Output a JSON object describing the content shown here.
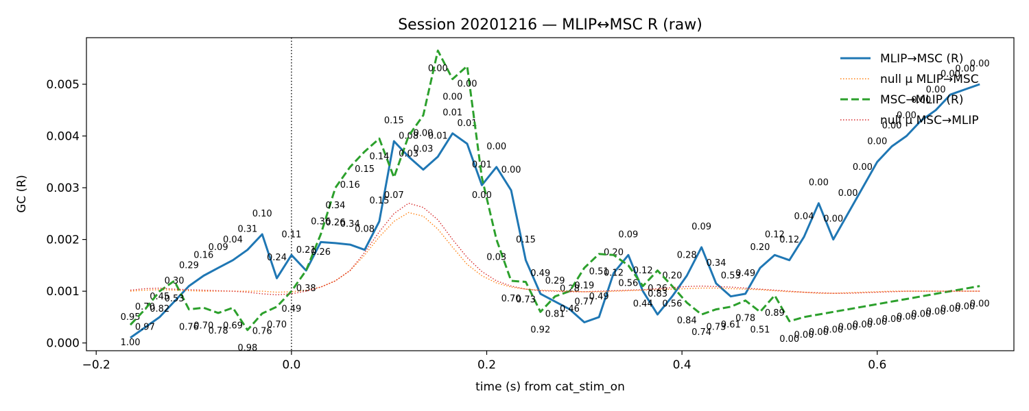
{
  "chart_data": {
    "type": "line",
    "title": "Session 20201216 — MLIP↔MSC R (raw)",
    "xlabel": "time (s) from cat_stim_on",
    "ylabel": "GC (R)",
    "xlim": [
      -0.21,
      0.74
    ],
    "ylim": [
      -0.00015,
      0.0059
    ],
    "x_ticks": [
      -0.2,
      0.0,
      0.2,
      0.4,
      0.6
    ],
    "x_tick_labels": [
      "−0.2",
      "0.0",
      "0.2",
      "0.4",
      "0.6"
    ],
    "y_ticks": [
      0.0,
      0.001,
      0.002,
      0.003,
      0.004,
      0.005
    ],
    "y_tick_labels": [
      "0.000",
      "0.001",
      "0.002",
      "0.003",
      "0.004",
      "0.005"
    ],
    "event_line_x": 0.0,
    "legend_position": "top-right",
    "x": [
      -0.165,
      -0.15,
      -0.135,
      -0.12,
      -0.105,
      -0.09,
      -0.075,
      -0.06,
      -0.045,
      -0.03,
      -0.015,
      0.0,
      0.015,
      0.03,
      0.045,
      0.06,
      0.075,
      0.09,
      0.105,
      0.12,
      0.135,
      0.15,
      0.165,
      0.18,
      0.195,
      0.21,
      0.225,
      0.24,
      0.255,
      0.27,
      0.285,
      0.3,
      0.315,
      0.33,
      0.345,
      0.36,
      0.375,
      0.39,
      0.405,
      0.42,
      0.435,
      0.45,
      0.465,
      0.48,
      0.495,
      0.51,
      0.525,
      0.54,
      0.555,
      0.57,
      0.585,
      0.6,
      0.615,
      0.63,
      0.645,
      0.66,
      0.675,
      0.69,
      0.705
    ],
    "series": [
      {
        "name": "MLIP→MSC (R)",
        "style": "solid",
        "color": "#1f77b4",
        "values": [
          0.0001,
          0.0003,
          0.0005,
          0.0008,
          0.0011,
          0.0013,
          0.00145,
          0.0016,
          0.0018,
          0.0021,
          0.00125,
          0.0017,
          0.0014,
          0.00195,
          0.00193,
          0.0019,
          0.0018,
          0.00235,
          0.0039,
          0.0036,
          0.00335,
          0.0036,
          0.00405,
          0.00385,
          0.00305,
          0.0034,
          0.00295,
          0.0016,
          0.00095,
          0.0008,
          0.00065,
          0.0004,
          0.0005,
          0.00135,
          0.0017,
          0.001,
          0.00055,
          0.0009,
          0.0013,
          0.00185,
          0.00115,
          0.0009,
          0.00095,
          0.00145,
          0.0017,
          0.0016,
          0.00205,
          0.0027,
          0.002,
          0.0025,
          0.003,
          0.0035,
          0.0038,
          0.004,
          0.0043,
          0.0045,
          0.0048,
          0.0049,
          0.005
        ],
        "annotations": [
          "0.95",
          "0.70",
          "0.45",
          "0.30",
          "0.29",
          "0.16",
          "0.09",
          "0.04",
          "0.31",
          "0.10",
          "0.24",
          "0.11",
          "0.21",
          "0.36",
          "0.26",
          "0.34",
          "0.08",
          "0.15",
          "0.15",
          "0.08",
          "0.03",
          "0.01",
          "0.01",
          "0.01",
          "0.01",
          "0.00",
          "0.00",
          "0.15",
          "0.49",
          "0.29",
          "0.28",
          "0.77",
          "0.49",
          "0.20",
          "0.09",
          "0.12",
          "0.83",
          "0.20",
          "0.28",
          "0.09",
          "0.34",
          "0.53",
          "0.49",
          "0.20",
          "0.12",
          "0.12",
          "0.04",
          "0.00",
          "0.00",
          "0.00",
          "0.00",
          "0.00",
          "0.00",
          "0.00",
          "0.00",
          "0.00",
          "0.00",
          "0.00",
          "0.00"
        ]
      },
      {
        "name": "null μ MLIP→MSC",
        "style": "dotted",
        "color": "#ff7f0e",
        "values": [
          0.001,
          0.00102,
          0.00103,
          0.00102,
          0.00101,
          0.001,
          0.001,
          0.001,
          0.001,
          0.001,
          0.00098,
          0.00099,
          0.00102,
          0.00108,
          0.0012,
          0.0014,
          0.0017,
          0.00205,
          0.00235,
          0.00252,
          0.00245,
          0.0022,
          0.00185,
          0.00152,
          0.0013,
          0.00116,
          0.00108,
          0.00104,
          0.00102,
          0.00101,
          0.001,
          0.00099,
          0.00099,
          0.001,
          0.00101,
          0.00102,
          0.00103,
          0.00104,
          0.00105,
          0.00106,
          0.00106,
          0.00105,
          0.00104,
          0.00103,
          0.00101,
          0.00099,
          0.00098,
          0.00096,
          0.00096,
          0.00097,
          0.00098,
          0.00099,
          0.001,
          0.001,
          0.001,
          0.001,
          0.001,
          0.001,
          0.001
        ]
      },
      {
        "name": "MSC→MLIP (R)",
        "style": "dashed",
        "color": "#2ca02c",
        "values": [
          0.00035,
          0.00065,
          0.001,
          0.0012,
          0.00065,
          0.00068,
          0.00058,
          0.00068,
          0.00025,
          0.00057,
          0.0007,
          0.001,
          0.0014,
          0.0021,
          0.003,
          0.0034,
          0.0037,
          0.00395,
          0.0032,
          0.004,
          0.0044,
          0.00565,
          0.0051,
          0.00535,
          0.0032,
          0.002,
          0.0012,
          0.00118,
          0.0006,
          0.0009,
          0.001,
          0.00145,
          0.00172,
          0.0017,
          0.0015,
          0.0011,
          0.0014,
          0.0011,
          0.00078,
          0.00055,
          0.00065,
          0.0007,
          0.00082,
          0.0006,
          0.00092,
          0.00042,
          0.0005,
          0.00055,
          0.0006,
          0.00065,
          0.0007,
          0.00075,
          0.0008,
          0.00085,
          0.0009,
          0.00095,
          0.001,
          0.00105,
          0.0011
        ],
        "annotations": [
          "1.00",
          "0.97",
          "0.82",
          "0.53",
          "0.76",
          "0.70",
          "0.78",
          "0.69",
          "0.98",
          "0.76",
          "0.70",
          "0.49",
          "0.38",
          "0.26",
          "0.34",
          "0.16",
          "0.15",
          "0.14",
          "0.07",
          "0.03",
          "0.00",
          "0.00",
          "0.00",
          "0.00",
          "0.00",
          "0.03",
          "0.70",
          "0.73",
          "0.92",
          "0.81",
          "0.46",
          "0.19",
          "0.51",
          "0.12",
          "0.56",
          "0.44",
          "0.26",
          "0.56",
          "0.84",
          "0.74",
          "0.73",
          "0.61",
          "0.78",
          "0.51",
          "0.89",
          "0.00",
          "0.00",
          "0.00",
          "0.00",
          "0.00",
          "0.00",
          "0.00",
          "0.00",
          "0.00",
          "0.00",
          "0.00",
          "0.00",
          "0.00",
          "0.00"
        ]
      },
      {
        "name": "null μ MSC→MLIP",
        "style": "dotted",
        "color": "#d62728",
        "values": [
          0.00102,
          0.00105,
          0.00106,
          0.00104,
          0.00103,
          0.00102,
          0.00101,
          0.001,
          0.00098,
          0.00095,
          0.00093,
          0.00095,
          0.001,
          0.00108,
          0.0012,
          0.0014,
          0.00175,
          0.00215,
          0.0025,
          0.0027,
          0.00262,
          0.00238,
          0.002,
          0.00165,
          0.00138,
          0.0012,
          0.0011,
          0.00104,
          0.00101,
          0.001,
          0.00099,
          0.00099,
          0.001,
          0.00101,
          0.00102,
          0.00103,
          0.00105,
          0.00107,
          0.00109,
          0.0011,
          0.00109,
          0.00108,
          0.00106,
          0.00104,
          0.00102,
          0.001,
          0.00098,
          0.00097,
          0.00096,
          0.00096,
          0.00097,
          0.00098,
          0.00099,
          0.001,
          0.001,
          0.001,
          0.001,
          0.001,
          0.001
        ]
      }
    ]
  }
}
